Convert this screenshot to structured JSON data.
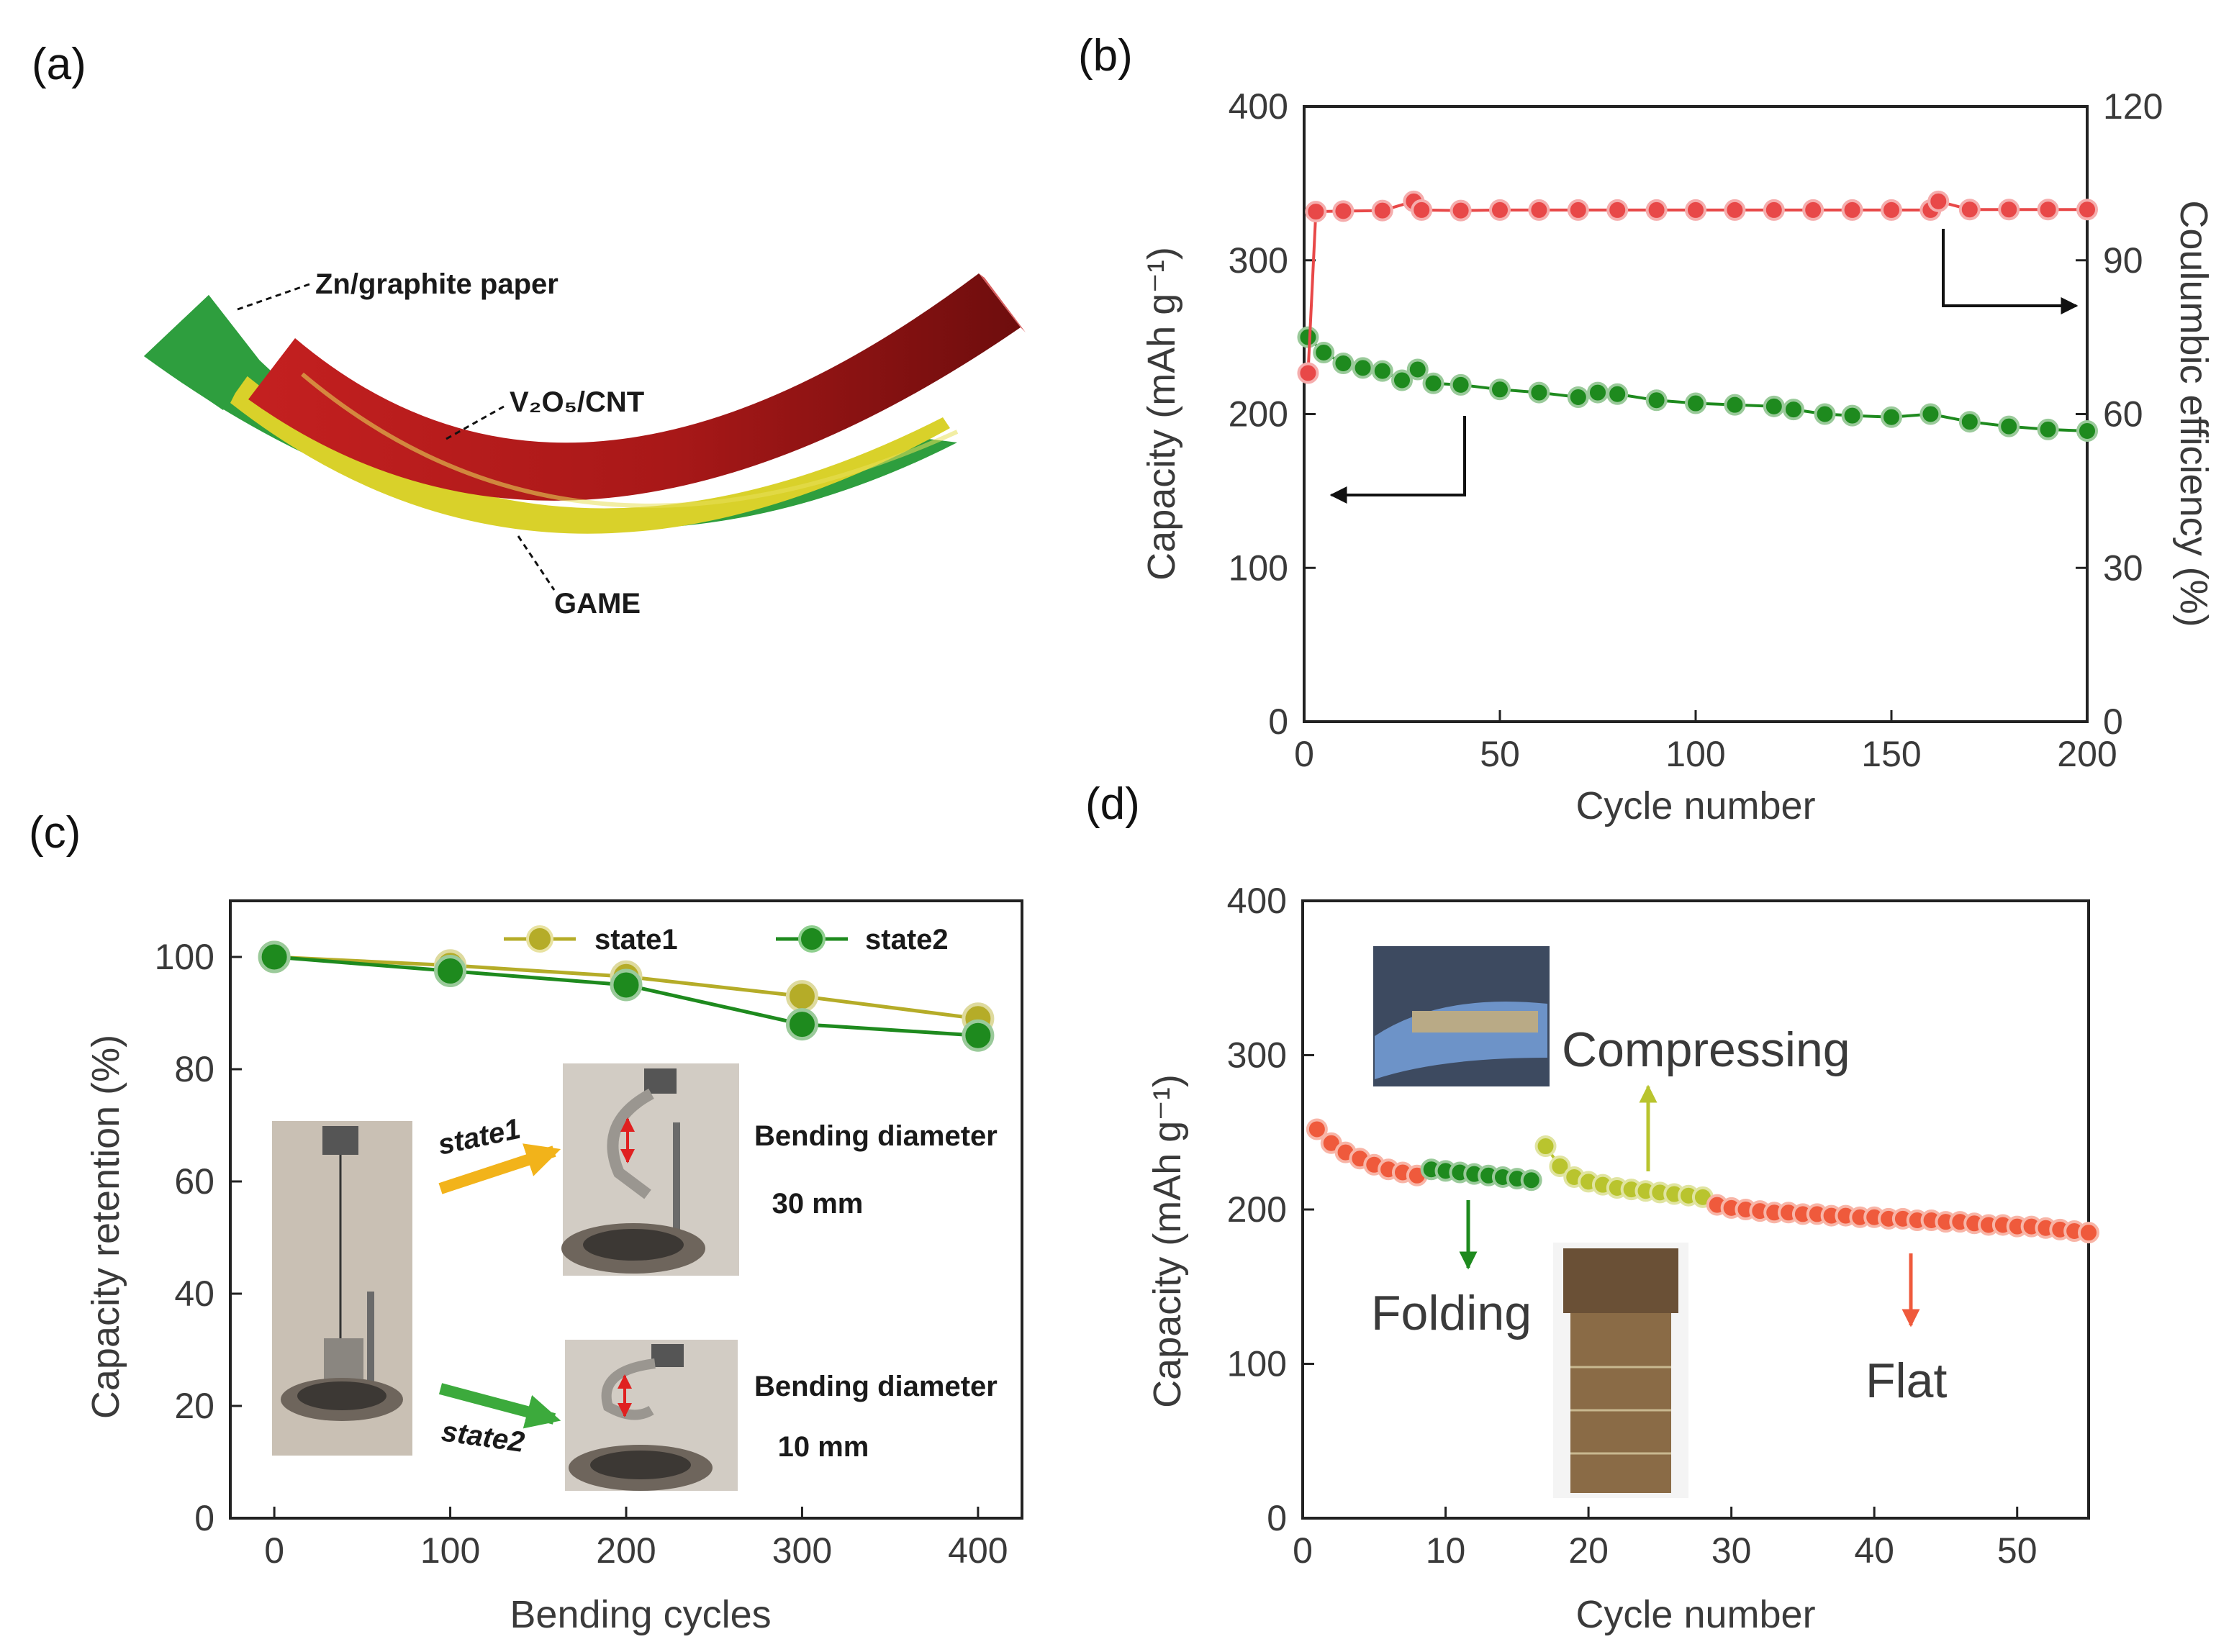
{
  "panel_labels": [
    "(a)",
    "(b)",
    "(c)",
    "(d)"
  ],
  "schematic": {
    "labels": [
      "Zn/graphite paper",
      "V₂O₅/CNT",
      "GAME"
    ],
    "colors": {
      "zn_layer": "#2e9e3e",
      "electrolyte": "#d9d12a",
      "cathode": "#a81c1c"
    }
  },
  "chart_data": [
    {
      "type": "scatter",
      "panel": "(b)",
      "xlabel": "Cycle number",
      "ylabel": "Capacity (mAh g⁻¹)",
      "y2label": "Coulumbic efficiency (%)",
      "xlim": [
        0,
        200
      ],
      "ylim": [
        0,
        400
      ],
      "y2lim": [
        0,
        120
      ],
      "xticks": [
        "0",
        "50",
        "100",
        "150",
        "200"
      ],
      "yticks": [
        "0",
        "100",
        "200",
        "300",
        "400"
      ],
      "y2ticks": [
        "0",
        "30",
        "60",
        "90",
        "120"
      ],
      "series": [
        {
          "name": "Capacity",
          "axis": "left",
          "color": "#1e8a1e",
          "x": [
            1,
            5,
            10,
            15,
            20,
            25,
            29,
            33,
            40,
            50,
            60,
            70,
            75,
            80,
            90,
            100,
            110,
            120,
            125,
            133,
            140,
            150,
            160,
            170,
            180,
            190,
            200
          ],
          "y": [
            250,
            240,
            233,
            230,
            228,
            222,
            229,
            220,
            219,
            216,
            214,
            211,
            214,
            213,
            209,
            207,
            206,
            205,
            203,
            200,
            199,
            198,
            200,
            195,
            192,
            190,
            189
          ]
        },
        {
          "name": "Coulumbic efficiency",
          "axis": "right",
          "color": "#e84848",
          "x": [
            1,
            3,
            10,
            20,
            28,
            30,
            40,
            50,
            60,
            70,
            80,
            90,
            100,
            110,
            120,
            130,
            140,
            150,
            160,
            162,
            170,
            180,
            190,
            200
          ],
          "y": [
            68,
            99.5,
            99.6,
            99.7,
            101.5,
            99.8,
            99.7,
            99.8,
            99.8,
            99.8,
            99.8,
            99.8,
            99.8,
            99.8,
            99.8,
            99.8,
            99.8,
            99.8,
            99.8,
            101.5,
            99.9,
            99.9,
            99.9,
            99.9
          ]
        }
      ]
    },
    {
      "type": "line",
      "panel": "(c)",
      "xlabel": "Bending cycles",
      "ylabel": "Capacity retention (%)",
      "xlim": [
        -25,
        425
      ],
      "ylim": [
        0,
        110
      ],
      "xticks": [
        "0",
        "100",
        "200",
        "300",
        "400"
      ],
      "yticks": [
        "0",
        "20",
        "40",
        "60",
        "80",
        "100"
      ],
      "x": [
        0,
        100,
        200,
        300,
        400
      ],
      "series": [
        {
          "name": "state1",
          "color": "#b5ac28",
          "values": [
            100,
            98.5,
            96.5,
            93,
            89
          ]
        },
        {
          "name": "state2",
          "color": "#1e8a1e",
          "values": [
            100,
            97.5,
            95,
            88,
            86
          ]
        }
      ],
      "annotations": [
        {
          "arrow": "state1",
          "text": "Bending diameter",
          "value": "30 mm"
        },
        {
          "arrow": "state2",
          "text": "Bending diameter",
          "value": "10 mm"
        }
      ]
    },
    {
      "type": "scatter",
      "panel": "(d)",
      "xlabel": "Cycle number",
      "ylabel": "Capacity (mAh g⁻¹)",
      "xlim": [
        0,
        55
      ],
      "ylim": [
        0,
        400
      ],
      "xticks": [
        "0",
        "10",
        "20",
        "30",
        "40",
        "50"
      ],
      "yticks": [
        "0",
        "100",
        "200",
        "300",
        "400"
      ],
      "series": [
        {
          "name": "Flat",
          "color": "#ef5a3c",
          "x": [
            1,
            2,
            3,
            4,
            5,
            6,
            7,
            8
          ],
          "y": [
            252,
            243,
            237,
            233,
            229,
            226,
            224,
            222
          ]
        },
        {
          "name": "Folding",
          "color": "#1e8a1e",
          "x": [
            9,
            10,
            11,
            12,
            13,
            14,
            15,
            16
          ],
          "y": [
            226,
            225,
            224,
            223,
            222,
            221,
            220,
            219
          ]
        },
        {
          "name": "Compressing",
          "color": "#b9c42e",
          "x": [
            17,
            18,
            19,
            20,
            21,
            22,
            23,
            24,
            25,
            26,
            27,
            28
          ],
          "y": [
            241,
            228,
            221,
            218,
            216,
            214,
            213,
            212,
            211,
            210,
            209,
            208
          ]
        },
        {
          "name": "Flat",
          "color": "#ef5a3c",
          "x": [
            29,
            30,
            31,
            32,
            33,
            34,
            35,
            36,
            37,
            38,
            39,
            40,
            41,
            42,
            43,
            44,
            45,
            46,
            47,
            48,
            49,
            50,
            51,
            52,
            53,
            54,
            55
          ],
          "y": [
            203,
            201,
            200,
            199,
            198,
            198,
            197,
            197,
            196,
            196,
            195,
            195,
            194,
            194,
            193,
            193,
            192,
            192,
            191,
            190,
            190,
            189,
            189,
            188,
            187,
            186,
            185
          ]
        }
      ],
      "labels": [
        "Compressing",
        "Folding",
        "Flat"
      ]
    }
  ]
}
